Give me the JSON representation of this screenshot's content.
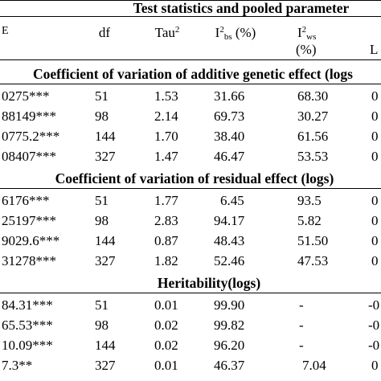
{
  "header": {
    "super_title": "Test statistics and pooled parameter",
    "col_q": "E",
    "col_df": "df",
    "col_tau_base": "Tau",
    "col_tau_sup": "2",
    "col_ibs_base": "I",
    "col_ibs_sup": "2",
    "col_ibs_sub": "bs",
    "col_ibs_unit": " (%)",
    "col_iws_base": "I",
    "col_iws_sup": "2",
    "col_iws_sub": "ws",
    "col_iws_unit": "(%)",
    "col_last": "L"
  },
  "sections": [
    {
      "title": "Coefficient of variation of additive genetic effect (logs",
      "rows": [
        {
          "q": "0275***",
          "df": "51",
          "tau": "1.53",
          "ibs": "31.66",
          "iws": "68.30",
          "last": "0"
        },
        {
          "q": "88149***",
          "df": "98",
          "tau": "2.14",
          "ibs": "69.73",
          "iws": "30.27",
          "last": "0"
        },
        {
          "q": "0775.2***",
          "df": "144",
          "tau": "1.70",
          "ibs": "38.40",
          "iws": "61.56",
          "last": "0"
        },
        {
          "q": "08407***",
          "df": "327",
          "tau": "1.47",
          "ibs": "46.47",
          "iws": "53.53",
          "last": "0"
        }
      ]
    },
    {
      "title": "Coefficient of variation of residual effect (logs)",
      "rows": [
        {
          "q": "6176***",
          "df": "51",
          "tau": "1.77",
          "ibs": "6.45",
          "iws": "93.5",
          "last": "0"
        },
        {
          "q": "25197***",
          "df": "98",
          "tau": "2.83",
          "ibs": "94.17",
          "iws": "5.82",
          "last": "0"
        },
        {
          "q": "9029.6***",
          "df": "144",
          "tau": "0.87",
          "ibs": "48.43",
          "iws": "51.50",
          "last": "0"
        },
        {
          "q": "31278***",
          "df": "327",
          "tau": "1.82",
          "ibs": "52.46",
          "iws": "47.53",
          "last": "0"
        }
      ]
    },
    {
      "title": "Heritability(logs)",
      "rows": [
        {
          "q": "84.31***",
          "df": "51",
          "tau": "0.01",
          "ibs": "99.90",
          "iws": "-",
          "last": "-0"
        },
        {
          "q": "65.53***",
          "df": "98",
          "tau": "0.02",
          "ibs": "99.82",
          "iws": "-",
          "last": "-0"
        },
        {
          "q": "10.09***",
          "df": "144",
          "tau": "0.02",
          "ibs": "96.20",
          "iws": "-",
          "last": "-0"
        },
        {
          "q": "7.3**",
          "df": "327",
          "tau": "0.01",
          "ibs": "46.37",
          "iws": "7.04",
          "last": "0"
        }
      ]
    }
  ]
}
